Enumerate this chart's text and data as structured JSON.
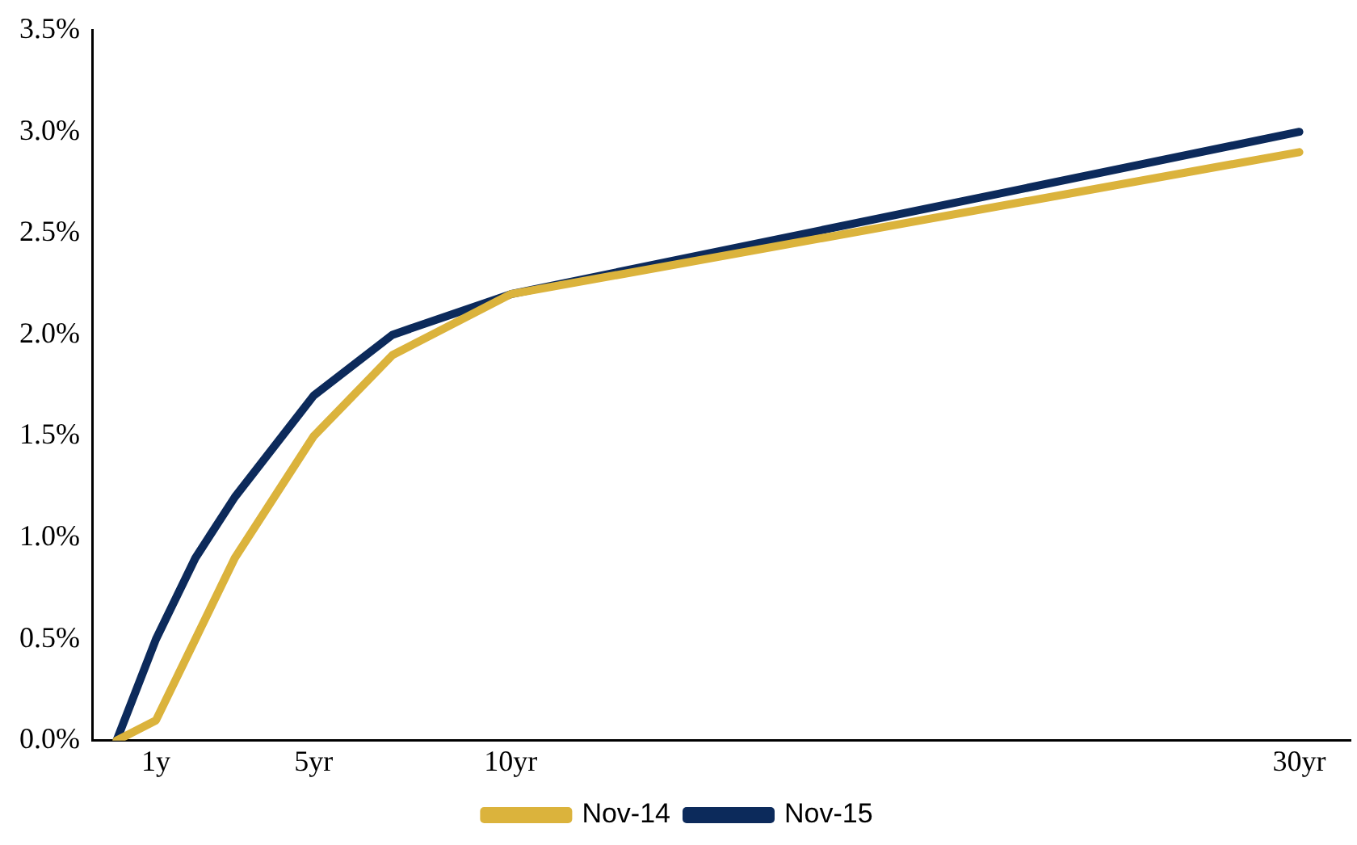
{
  "chart_data": {
    "type": "line",
    "x": [
      0,
      1,
      2,
      3,
      5,
      7,
      10,
      30
    ],
    "series": [
      {
        "name": "Nov-14",
        "color": "#dbb33c",
        "values": [
          0,
          0.1,
          0.5,
          0.9,
          1.5,
          1.9,
          2.2,
          2.9
        ]
      },
      {
        "name": "Nov-15",
        "color": "#0c2a5b",
        "values": [
          0,
          0.5,
          0.9,
          1.2,
          1.7,
          2.0,
          2.2,
          3.0
        ]
      }
    ],
    "xlim": [
      -0.6,
      31.3
    ],
    "xticks": [
      {
        "value": 1,
        "label": "1y"
      },
      {
        "value": 5,
        "label": "5yr"
      },
      {
        "value": 10,
        "label": "10yr"
      },
      {
        "value": 30,
        "label": "30yr"
      }
    ],
    "ylim": [
      0,
      3.5
    ],
    "yticks": [
      {
        "value": 0,
        "label": "0.0%"
      },
      {
        "value": 0.5,
        "label": "0.5%"
      },
      {
        "value": 1,
        "label": "1.0%"
      },
      {
        "value": 1.5,
        "label": "1.5%"
      },
      {
        "value": 2,
        "label": "2.0%"
      },
      {
        "value": 2.5,
        "label": "2.5%"
      },
      {
        "value": 3,
        "label": "3.0%"
      },
      {
        "value": 3.5,
        "label": "3.5%"
      }
    ],
    "grid": false,
    "legend": "bottom",
    "marker": "none",
    "line_style": "solid"
  }
}
